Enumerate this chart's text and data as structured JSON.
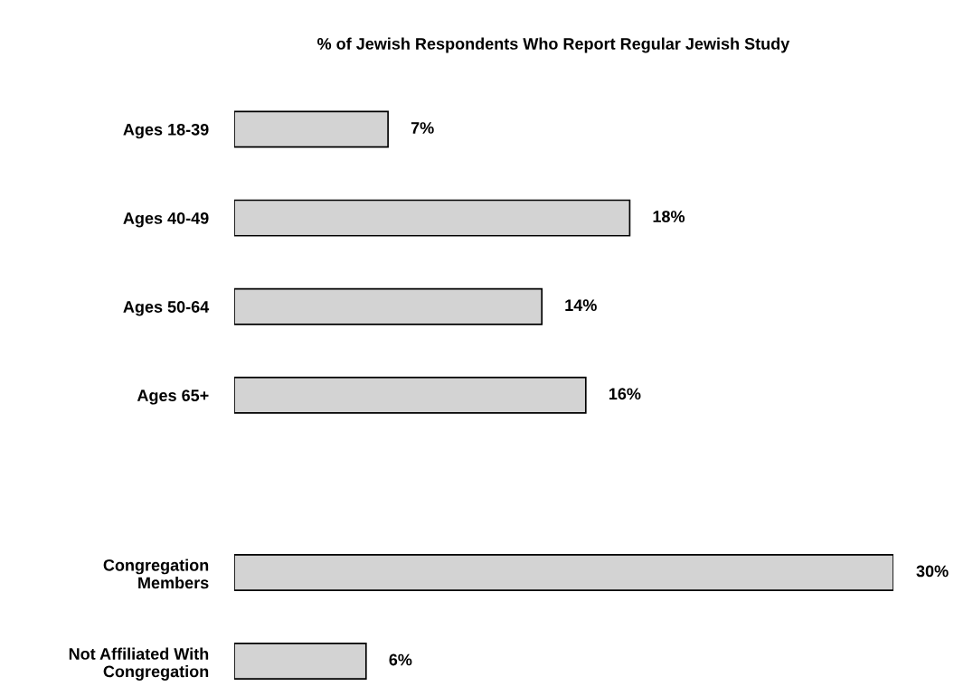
{
  "chart_data": {
    "type": "bar",
    "orientation": "horizontal",
    "title": "% of Jewish Respondents Who Report Regular Jewish Study",
    "categories": [
      "Ages 18-39",
      "Ages 40-49",
      "Ages 50-64",
      "Ages 65+",
      null,
      "Congregation\nMembers",
      "Not Affiliated With\nCongregation"
    ],
    "values": [
      7,
      18,
      14,
      16,
      null,
      30,
      6
    ],
    "value_labels": [
      "7%",
      "18%",
      "14%",
      "16%",
      null,
      "30%",
      "6%"
    ],
    "color": "#d3d3d3",
    "grid": false,
    "legend": false
  }
}
